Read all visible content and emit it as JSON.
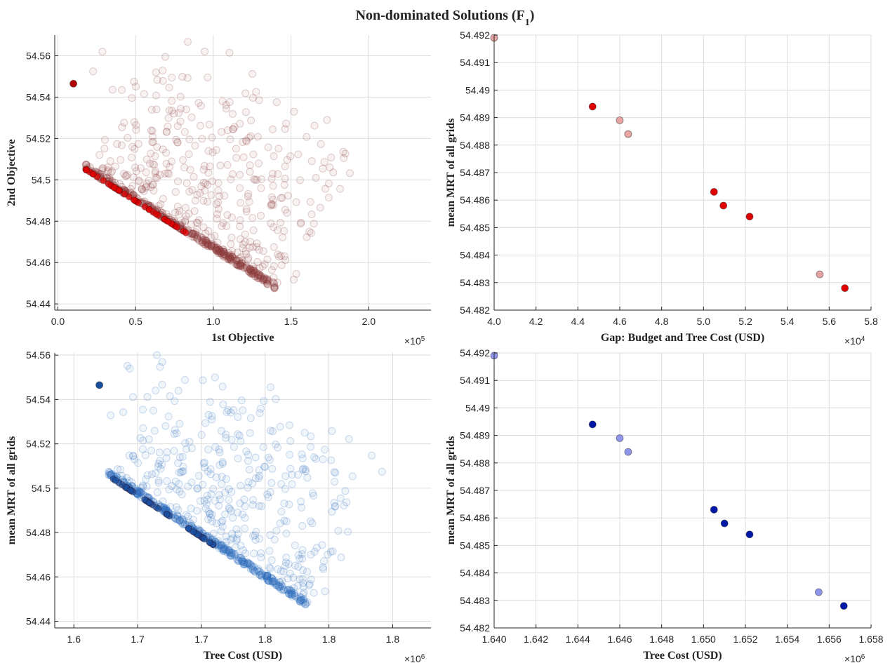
{
  "figure": {
    "title_main": "Non-dominated Solutions (F",
    "title_sub": "1",
    "title_close": ")"
  },
  "colors": {
    "red_dark": "#b30000",
    "red_bright": "#e00000",
    "red_faded": "#e8a3a3",
    "red_cloud": "#8b3a3a",
    "blue_dark": "#0018a8",
    "blue_faded": "#8e96ec",
    "blue_cloud": "#2f6fbf",
    "blue_front": "#1a4fa0"
  },
  "chart_data": [
    {
      "id": "tl",
      "type": "scatter",
      "xlabel": "1st Objective",
      "ylabel": "2nd Objective",
      "exponent_base": "×10",
      "exponent_power": "5",
      "xlim": [
        -0.02,
        2.4
      ],
      "ylim": [
        54.437,
        54.57
      ],
      "xticks": [
        0,
        0.5,
        1,
        1.5,
        2
      ],
      "xtick_labels": [
        "0.0",
        "0.5",
        "1.0",
        "1.5",
        "2.0"
      ],
      "yticks": [
        54.44,
        54.46,
        54.48,
        54.5,
        54.52,
        54.54,
        54.56
      ],
      "ytick_labels": [
        "54.44",
        "54.46",
        "54.48",
        "54.5",
        "54.52",
        "54.54",
        "54.56"
      ],
      "series": [
        {
          "role": "highlight",
          "color": "red_dark",
          "points": [
            [
              0.1,
              54.5465
            ]
          ]
        }
      ],
      "cloud": {
        "color": "red_cloud",
        "front_color": "red_bright",
        "x0": 0.18,
        "y0": 54.505,
        "x1": 1.4,
        "y1": 54.447
      }
    },
    {
      "id": "tr",
      "type": "scatter",
      "xlabel": "Gap: Budget and Tree Cost (USD)",
      "ylabel": "mean MRT of all grids",
      "exponent_base": "×10",
      "exponent_power": "4",
      "xlim": [
        4.0,
        5.8
      ],
      "ylim": [
        54.482,
        54.492
      ],
      "xticks": [
        4.0,
        4.2,
        4.4,
        4.6,
        4.8,
        5.0,
        5.2,
        5.4,
        5.6,
        5.8
      ],
      "xtick_labels": [
        "4.0",
        "4.2",
        "4.4",
        "4.6",
        "4.8",
        "5.0",
        "5.2",
        "5.4",
        "5.6",
        "5.8"
      ],
      "yticks": [
        54.482,
        54.483,
        54.484,
        54.485,
        54.486,
        54.487,
        54.488,
        54.489,
        54.49,
        54.491,
        54.492
      ],
      "ytick_labels": [
        "54.482",
        "54.483",
        "54.484",
        "54.485",
        "54.486",
        "54.487",
        "54.488",
        "54.489",
        "54.49",
        "54.491",
        "54.492"
      ],
      "series": [
        {
          "role": "front",
          "color": "red_bright",
          "points": [
            [
              4.47,
              54.4894
            ],
            [
              5.05,
              54.4863
            ],
            [
              5.095,
              54.4858
            ],
            [
              5.22,
              54.4854
            ],
            [
              5.675,
              54.4828
            ]
          ]
        },
        {
          "role": "faded",
          "color": "red_faded",
          "points": [
            [
              4.0,
              54.4919
            ],
            [
              4.6,
              54.4889
            ],
            [
              4.64,
              54.4884
            ],
            [
              5.555,
              54.4833
            ]
          ]
        }
      ]
    },
    {
      "id": "bl",
      "type": "scatter",
      "xlabel": "Tree Cost (USD)",
      "ylabel": "mean MRT of all grids",
      "exponent_base": "×10",
      "exponent_power": "6",
      "xlim": [
        1.585,
        1.88
      ],
      "ylim": [
        54.437,
        54.561
      ],
      "xticks": [
        1.6,
        1.65,
        1.7,
        1.75,
        1.8,
        1.85
      ],
      "xtick_labels": [
        "1.6",
        "1.7",
        "1.7",
        "1.8",
        "1.8",
        "1.8"
      ],
      "yticks": [
        54.44,
        54.46,
        54.48,
        54.5,
        54.52,
        54.54,
        54.56
      ],
      "ytick_labels": [
        "54.44",
        "54.46",
        "54.48",
        "54.5",
        "54.52",
        "54.54",
        "54.56"
      ],
      "series": [
        {
          "role": "highlight",
          "color": "blue_front",
          "points": [
            [
              1.62,
              54.5465
            ]
          ]
        }
      ],
      "cloud": {
        "color": "blue_cloud",
        "front_color": "blue_front",
        "x0": 1.626,
        "y0": 54.506,
        "x1": 1.782,
        "y1": 54.447
      }
    },
    {
      "id": "br",
      "type": "scatter",
      "xlabel": "Tree Cost (USD)",
      "ylabel": "mean MRT of all grids",
      "exponent_base": "×10",
      "exponent_power": "6",
      "xlim": [
        1.64,
        1.658
      ],
      "ylim": [
        54.482,
        54.492
      ],
      "xticks": [
        1.64,
        1.642,
        1.644,
        1.646,
        1.648,
        1.65,
        1.652,
        1.654,
        1.656,
        1.658
      ],
      "xtick_labels": [
        "1.640",
        "1.642",
        "1.644",
        "1.646",
        "1.648",
        "1.650",
        "1.652",
        "1.654",
        "1.656",
        "1.658"
      ],
      "yticks": [
        54.482,
        54.483,
        54.484,
        54.485,
        54.486,
        54.487,
        54.488,
        54.489,
        54.49,
        54.491,
        54.492
      ],
      "ytick_labels": [
        "54.482",
        "54.483",
        "54.484",
        "54.485",
        "54.486",
        "54.487",
        "54.488",
        "54.489",
        "54.49",
        "54.491",
        "54.492"
      ],
      "series": [
        {
          "role": "front",
          "color": "blue_dark",
          "points": [
            [
              1.6447,
              54.4894
            ],
            [
              1.6505,
              54.4863
            ],
            [
              1.651,
              54.4858
            ],
            [
              1.6522,
              54.4854
            ],
            [
              1.6567,
              54.4828
            ]
          ]
        },
        {
          "role": "faded",
          "color": "blue_faded",
          "points": [
            [
              1.64,
              54.4919
            ],
            [
              1.646,
              54.4889
            ],
            [
              1.6464,
              54.4884
            ],
            [
              1.6555,
              54.4833
            ]
          ]
        }
      ]
    }
  ]
}
